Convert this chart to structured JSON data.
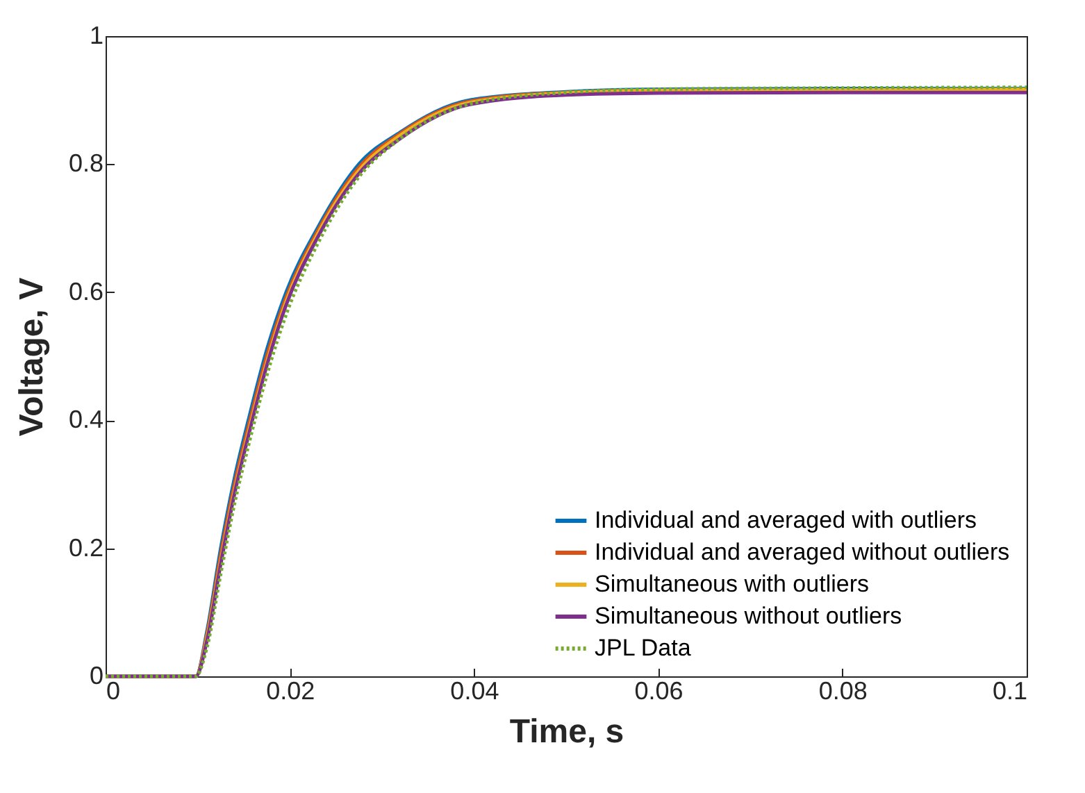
{
  "chart_data": {
    "type": "line",
    "xlabel": "Time, s",
    "ylabel": "Voltage, V",
    "xlim": [
      0,
      0.1
    ],
    "xticks": [
      0,
      0.02,
      0.04,
      0.06,
      0.08,
      0.1
    ],
    "ylim": [
      0,
      1
    ],
    "yticks": [
      0,
      0.2,
      0.4,
      0.6,
      0.8,
      1
    ],
    "grid": false,
    "legend": "bottom right",
    "marker": "none",
    "x": [
      0,
      0.0098,
      0.011,
      0.0125,
      0.014,
      0.0155,
      0.0175,
      0.0196,
      0.023,
      0.0275,
      0.032,
      0.0395,
      0.05,
      0.06,
      0.08,
      0.1
    ],
    "series": [
      {
        "name": "Individual and averaged with outliers",
        "color": "#0072bd",
        "values": [
          0,
          0,
          0.07,
          0.2,
          0.31,
          0.4,
          0.51,
          0.6,
          0.7,
          0.8,
          0.85,
          0.9,
          0.913,
          0.917,
          0.918,
          0.918
        ]
      },
      {
        "name": "Individual and averaged without outliers",
        "color": "#d95319",
        "values": [
          0,
          0,
          0.065,
          0.19,
          0.3,
          0.39,
          0.5,
          0.592,
          0.695,
          0.795,
          0.848,
          0.898,
          0.912,
          0.915,
          0.915,
          0.915
        ]
      },
      {
        "name": "Simultaneous with outliers",
        "color": "#edb120",
        "values": [
          0,
          0,
          0.06,
          0.18,
          0.29,
          0.38,
          0.49,
          0.585,
          0.69,
          0.79,
          0.845,
          0.896,
          0.911,
          0.915,
          0.916,
          0.917
        ]
      },
      {
        "name": "Simultaneous without outliers",
        "color": "#7e2f8e",
        "values": [
          0,
          0,
          0.055,
          0.175,
          0.285,
          0.375,
          0.485,
          0.58,
          0.685,
          0.785,
          0.84,
          0.893,
          0.908,
          0.911,
          0.912,
          0.912
        ]
      },
      {
        "name": "JPL Data",
        "color": "#77ac30",
        "line_style": "dotted",
        "values": [
          0,
          0,
          0.045,
          0.16,
          0.27,
          0.36,
          0.47,
          0.565,
          0.675,
          0.78,
          0.84,
          0.894,
          0.912,
          0.917,
          0.919,
          0.92
        ]
      }
    ]
  }
}
